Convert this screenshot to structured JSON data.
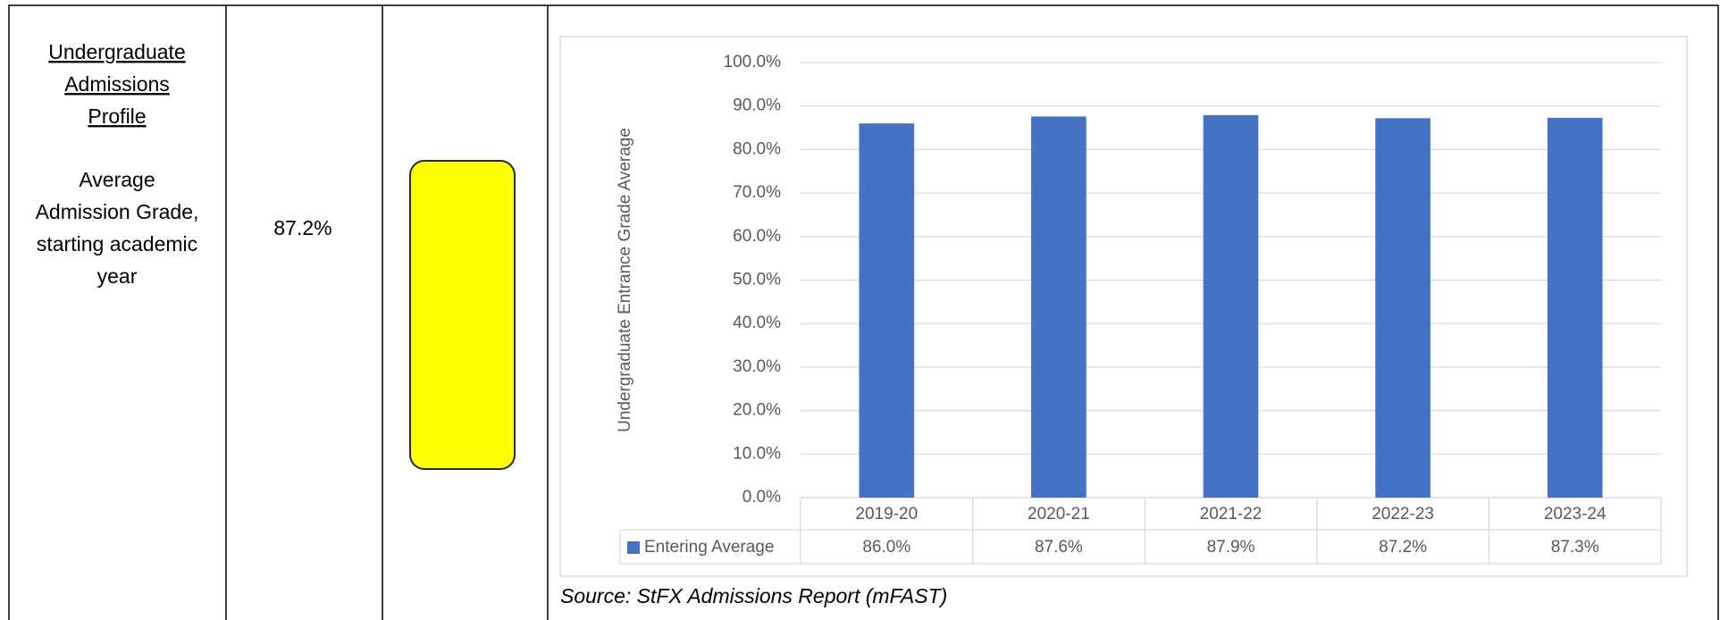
{
  "table": {
    "heading_lines": [
      "Undergraduate",
      "Admissions",
      "Profile"
    ],
    "measure_lines": [
      "Average",
      "Admission Grade,",
      "starting academic",
      "year"
    ],
    "current_value": "87.2%",
    "source": "Source: StFX Admissions Report (mFAST)"
  },
  "chart_data": {
    "type": "bar",
    "ylabel": "Undergraduate Entrance Grade Average",
    "categories": [
      "2019-20",
      "2020-21",
      "2021-22",
      "2022-23",
      "2023-24"
    ],
    "series": [
      {
        "name": "Entering Average",
        "color": "#4472c4",
        "values": [
          86.0,
          87.6,
          87.9,
          87.2,
          87.3
        ],
        "value_labels": [
          "86.0%",
          "87.6%",
          "87.9%",
          "87.2%",
          "87.3%"
        ]
      }
    ],
    "ylim": [
      0,
      100
    ],
    "yticks": [
      {
        "value": 0,
        "label": "0.0%"
      },
      {
        "value": 10,
        "label": "10.0%"
      },
      {
        "value": 20,
        "label": "20.0%"
      },
      {
        "value": 30,
        "label": "30.0%"
      },
      {
        "value": 40,
        "label": "40.0%"
      },
      {
        "value": 50,
        "label": "50.0%"
      },
      {
        "value": 60,
        "label": "60.0%"
      },
      {
        "value": 70,
        "label": "70.0%"
      },
      {
        "value": 80,
        "label": "80.0%"
      },
      {
        "value": 90,
        "label": "90.0%"
      },
      {
        "value": 100,
        "label": "100.0%"
      }
    ],
    "grid": true
  }
}
